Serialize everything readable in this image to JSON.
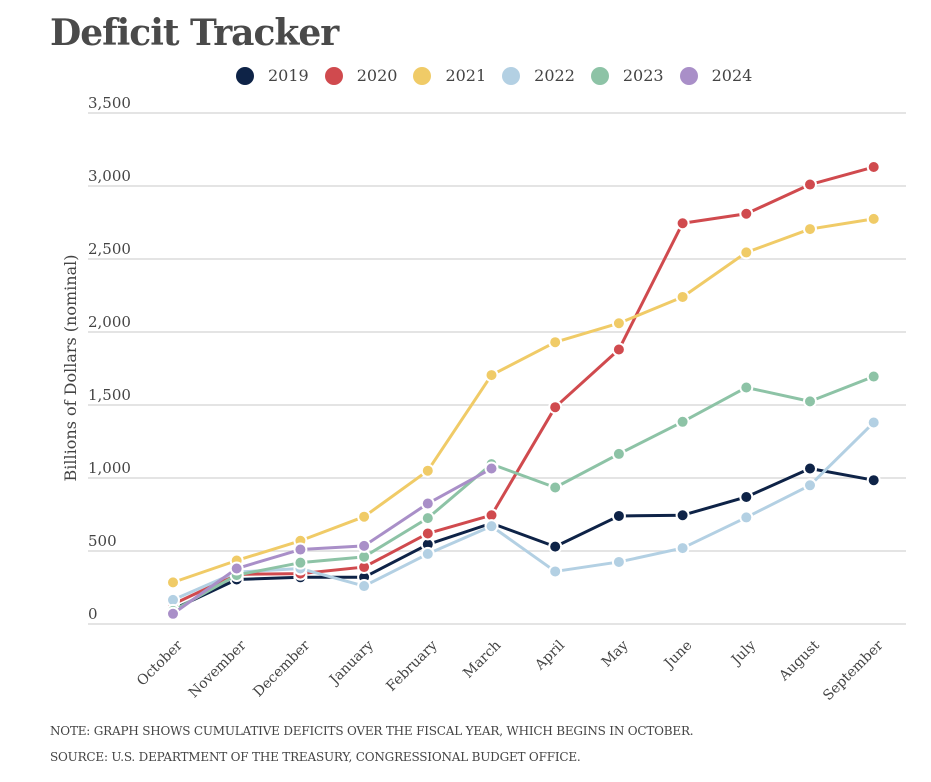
{
  "header": {
    "title": "Deficit Tracker"
  },
  "footer": {
    "note": "NOTE: GRAPH SHOWS CUMULATIVE DEFICITS OVER THE FISCAL YEAR, WHICH BEGINS IN OCTOBER.",
    "source": "SOURCE: U.S. DEPARTMENT OF THE TREASURY, CONGRESSIONAL BUDGET OFFICE."
  },
  "chart_data": {
    "type": "line",
    "title": "Deficit Tracker",
    "xlabel": "",
    "ylabel": "Billions of Dollars (nominal)",
    "ylim": [
      0,
      3500
    ],
    "yticks": [
      0,
      500,
      1000,
      1500,
      2000,
      2500,
      3000,
      3500
    ],
    "ytick_labels": [
      "0",
      "500",
      "1,000",
      "1,500",
      "2,000",
      "2,500",
      "3,000",
      "3,500"
    ],
    "grid": true,
    "legend_position": "top-center",
    "categories": [
      "October",
      "November",
      "December",
      "January",
      "February",
      "March",
      "April",
      "May",
      "June",
      "July",
      "August",
      "September"
    ],
    "series": [
      {
        "name": "2019",
        "color": "#0e2347",
        "values": [
          100,
          305,
          320,
          320,
          545,
          690,
          530,
          740,
          745,
          870,
          1065,
          985
        ]
      },
      {
        "name": "2020",
        "color": "#d04a4e",
        "values": [
          135,
          340,
          345,
          390,
          620,
          745,
          1485,
          1880,
          2745,
          2810,
          3010,
          3130
        ]
      },
      {
        "name": "2021",
        "color": "#f0cb67",
        "values": [
          285,
          435,
          570,
          735,
          1050,
          1705,
          1930,
          2060,
          2240,
          2545,
          2705,
          2775
        ]
      },
      {
        "name": "2022",
        "color": "#b3d0e3",
        "values": [
          165,
          355,
          380,
          260,
          480,
          670,
          360,
          425,
          520,
          730,
          950,
          1380
        ]
      },
      {
        "name": "2023",
        "color": "#8dc3a6",
        "values": [
          90,
          335,
          420,
          460,
          725,
          1095,
          935,
          1165,
          1385,
          1620,
          1525,
          1695
        ]
      },
      {
        "name": "2024",
        "color": "#a98fc8",
        "values": [
          70,
          380,
          510,
          535,
          825,
          1065,
          null,
          null,
          null,
          null,
          null,
          null
        ]
      }
    ]
  }
}
